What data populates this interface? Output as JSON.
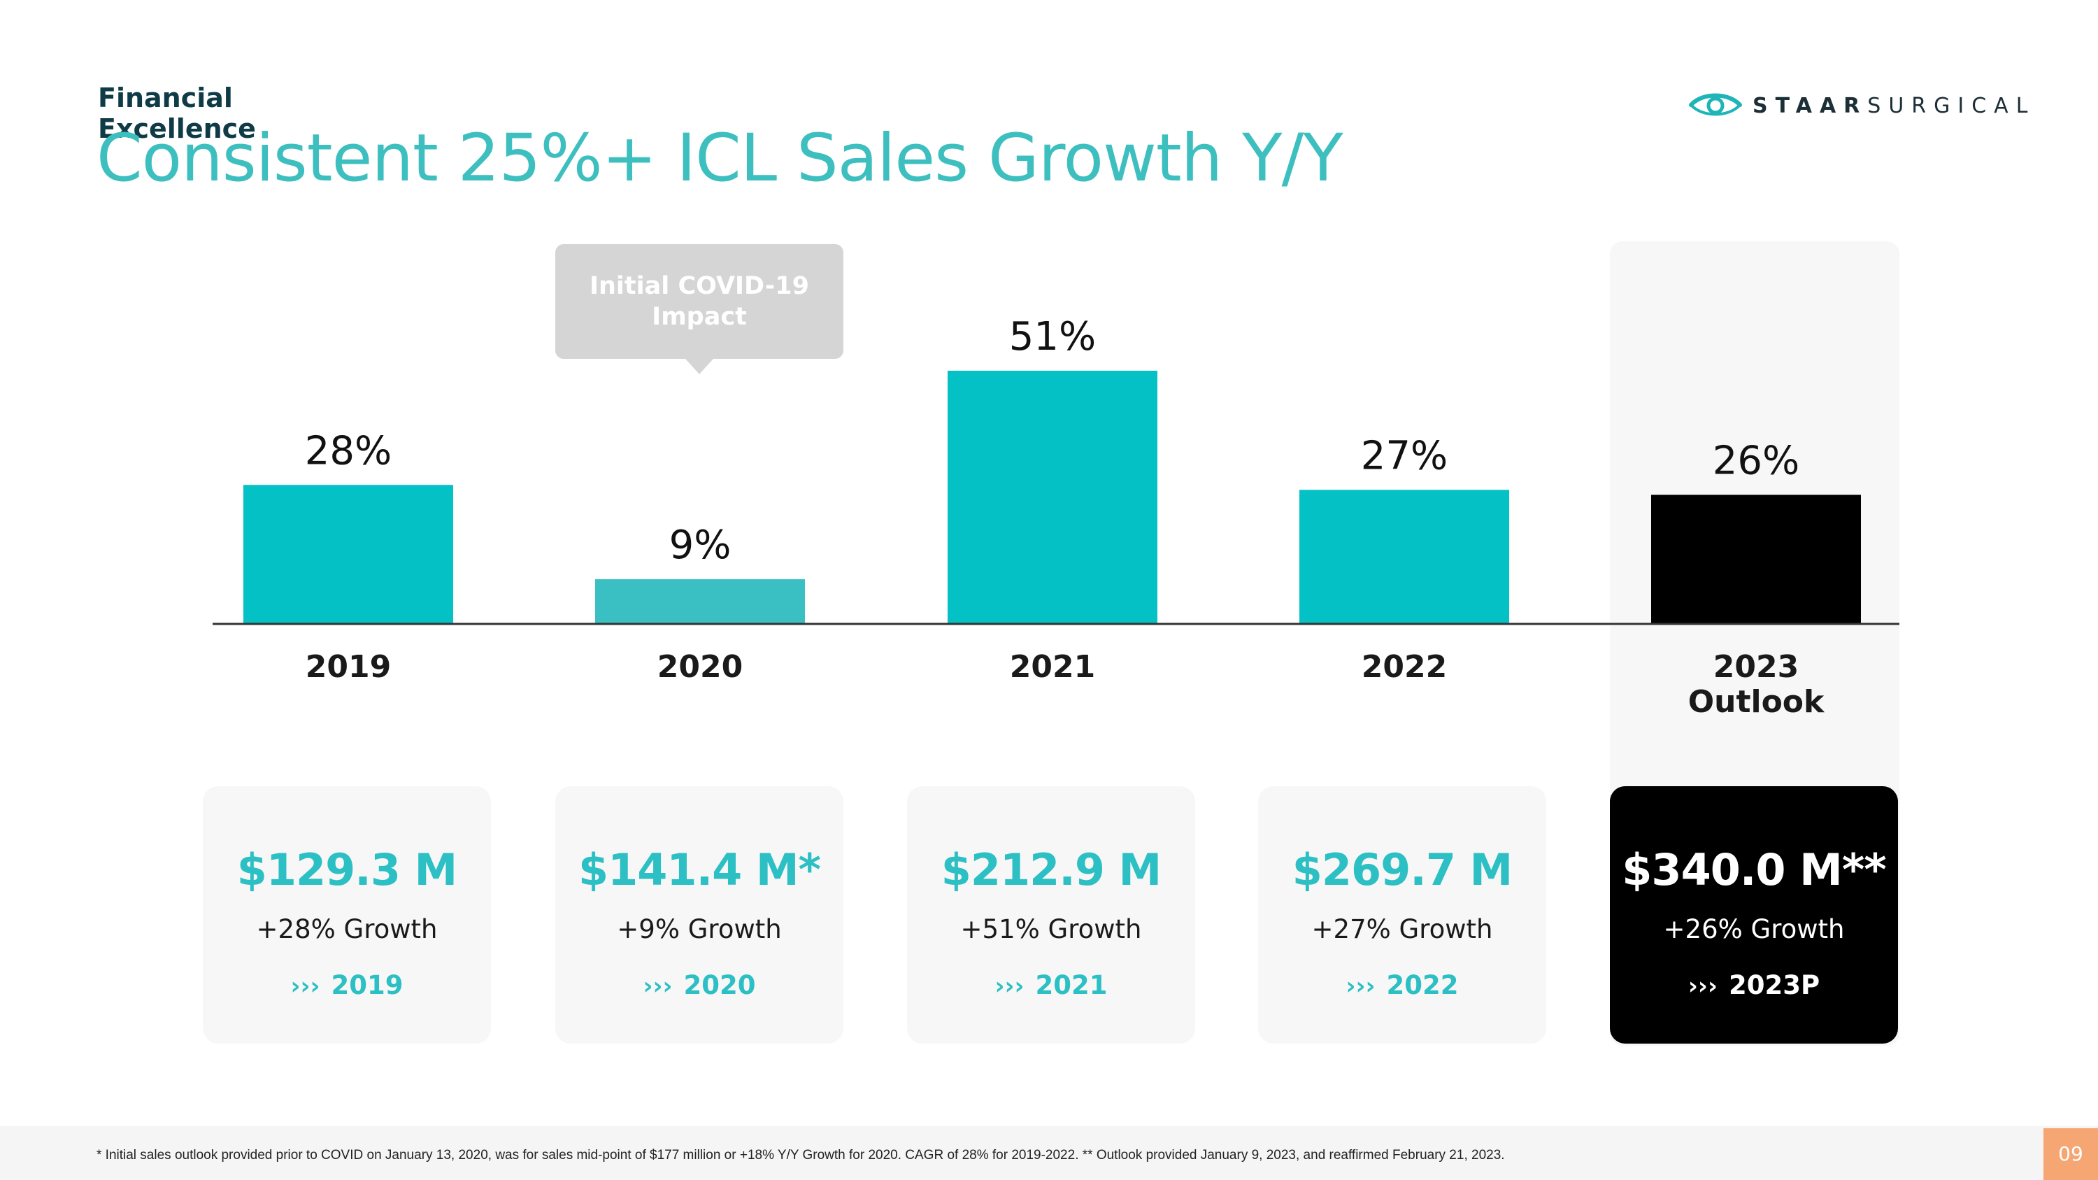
{
  "header": {
    "section": "Financial Excellence",
    "title": "Consistent 25%+ ICL Sales Growth Y/Y",
    "logo": {
      "bold": "STAAR",
      "light": "SURGICAL",
      "icon": "eye-logo-icon"
    }
  },
  "callout": {
    "text": "Initial COVID-19 Impact"
  },
  "chart_data": {
    "type": "bar",
    "categories": [
      "2019",
      "2020",
      "2021",
      "2022",
      "2023 Outlook"
    ],
    "values": [
      28,
      9,
      51,
      27,
      26
    ],
    "value_labels": [
      "28%",
      "9%",
      "51%",
      "27%",
      "26%"
    ],
    "colors": [
      "#03c1c5",
      "#3abfc3",
      "#03c1c5",
      "#03c1c5",
      "#000000"
    ],
    "title": "",
    "xlabel": "",
    "ylabel": "",
    "ylim": [
      0,
      51
    ]
  },
  "cards": [
    {
      "amount": "$129.3 M",
      "growth": "+28% Growth",
      "link": "2019"
    },
    {
      "amount": "$141.4 M*",
      "growth": "+9% Growth",
      "link": "2020"
    },
    {
      "amount": "$212.9 M",
      "growth": "+51% Growth",
      "link": "2021"
    },
    {
      "amount": "$269.7 M",
      "growth": "+27% Growth",
      "link": "2022"
    },
    {
      "amount": "$340.0 M**",
      "growth": "+26% Growth",
      "link": "2023P"
    }
  ],
  "link_chevron": "›››",
  "footnote": "* Initial sales outlook provided prior to COVID on January 13, 2020, was for sales mid-point of $177 million or +18% Y/Y Growth for 2020. CAGR of 28% for 2019-2022. ** Outlook provided January 9, 2023, and reaffirmed February 21, 2023.",
  "page_number": "09",
  "colors": {
    "accent": "#2cbfc3",
    "title": "#3ebfbf",
    "dark": "#000000",
    "page_tab": "#f5a673"
  }
}
